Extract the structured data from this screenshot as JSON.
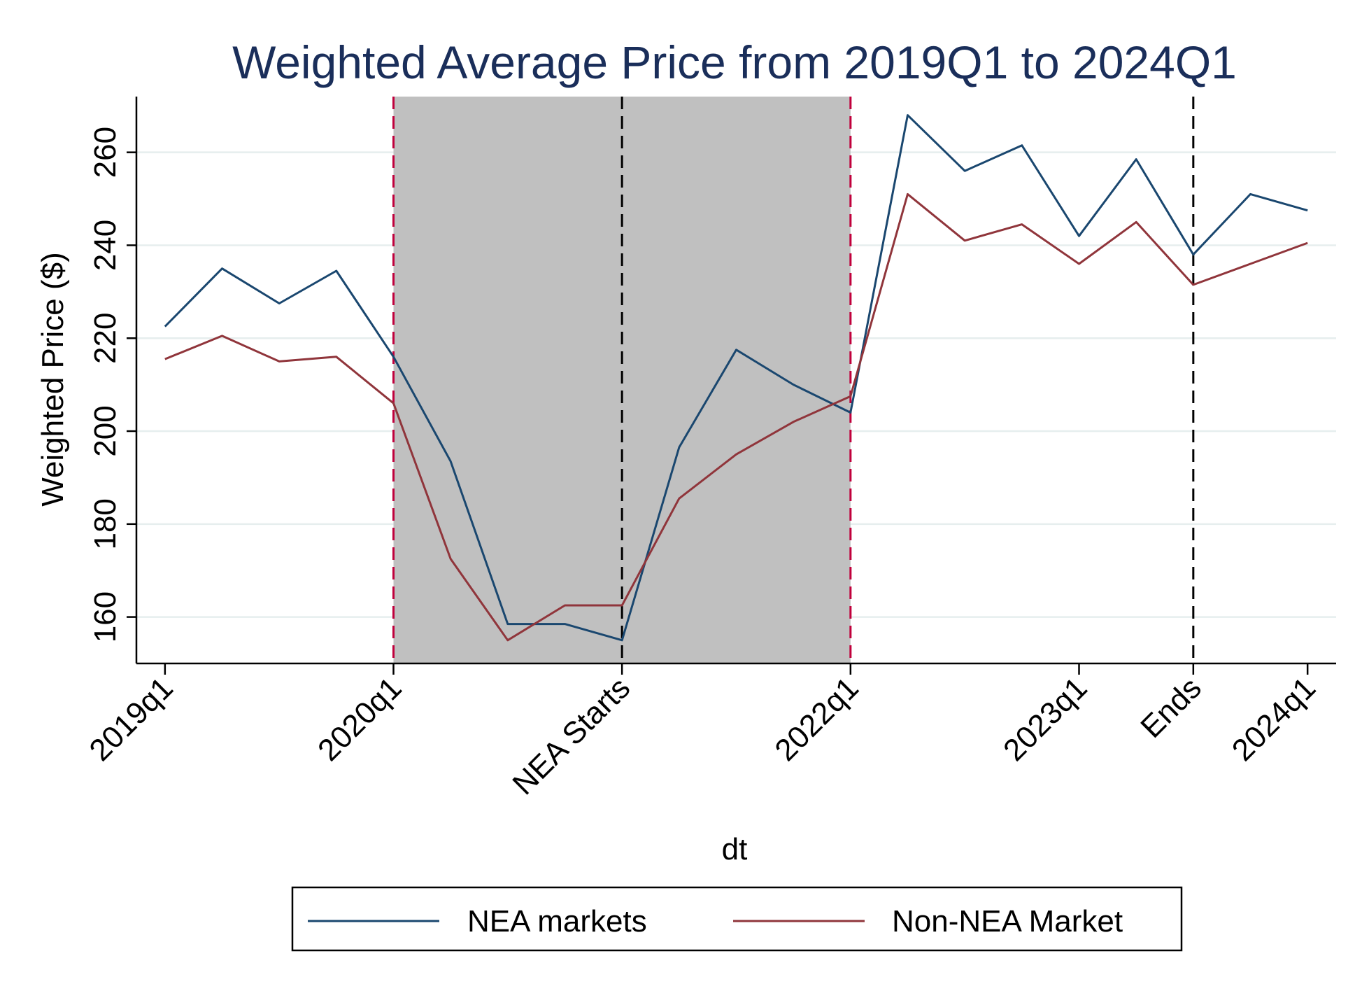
{
  "chart_data": {
    "type": "line",
    "title": "Weighted Average Price from 2019Q1 to 2024Q1",
    "xlabel": "dt",
    "ylabel": "Weighted Price ($)",
    "ylim": [
      150,
      272
    ],
    "xlim": [
      -0.5,
      20.5
    ],
    "yticks": [
      160,
      180,
      200,
      220,
      240,
      260
    ],
    "grid": true,
    "x_tick_labels": [
      {
        "pos": 0,
        "label": "2019q1"
      },
      {
        "pos": 4,
        "label": "2020q1"
      },
      {
        "pos": 8,
        "label": "NEA Starts"
      },
      {
        "pos": 12,
        "label": "2022q1"
      },
      {
        "pos": 16,
        "label": "2023q1"
      },
      {
        "pos": 18,
        "label": "Ends"
      },
      {
        "pos": 20,
        "label": "2024q1"
      }
    ],
    "shaded_region": {
      "from": 4,
      "to": 12,
      "color": "#c0c0c0"
    },
    "vertical_lines": [
      {
        "pos": 4,
        "color": "#c0003c",
        "style": "dashed"
      },
      {
        "pos": 12,
        "color": "#c0003c",
        "style": "dashed"
      },
      {
        "pos": 8,
        "color": "#000000",
        "style": "dashed"
      },
      {
        "pos": 18,
        "color": "#000000",
        "style": "dashed"
      }
    ],
    "x": [
      0,
      1,
      2,
      3,
      4,
      5,
      6,
      7,
      8,
      9,
      10,
      11,
      12,
      13,
      14,
      15,
      16,
      17,
      18,
      19,
      20
    ],
    "series": [
      {
        "name": "NEA markets",
        "color": "#1a476f",
        "values": [
          222.5,
          235.0,
          227.5,
          234.5,
          216.0,
          193.5,
          158.5,
          158.5,
          155.0,
          196.5,
          217.5,
          210.0,
          204.0,
          268.0,
          256.0,
          261.5,
          242.0,
          258.5,
          238.0,
          251.0,
          247.5
        ]
      },
      {
        "name": "Non-NEA Market",
        "color": "#90353b",
        "values": [
          215.5,
          220.5,
          215.0,
          216.0,
          206.0,
          172.5,
          155.0,
          162.5,
          162.5,
          185.5,
          195.0,
          202.0,
          207.5,
          251.0,
          241.0,
          244.5,
          236.0,
          245.0,
          231.5,
          236.0,
          240.5
        ]
      }
    ],
    "legend_position": "bottom"
  }
}
